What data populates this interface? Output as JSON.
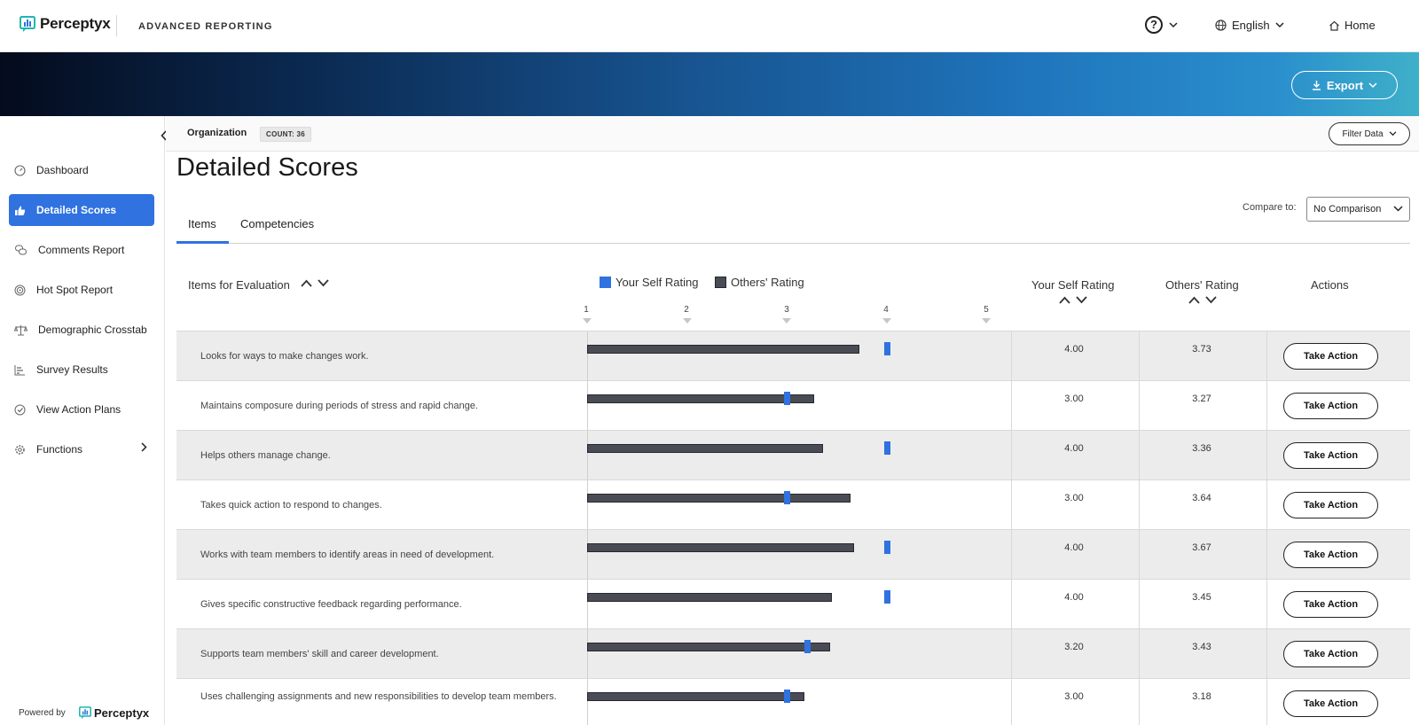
{
  "app": {
    "brand": "Perceptyx",
    "product": "ADVANCED REPORTING",
    "language": "English",
    "home": "Home",
    "help_glyph": "?"
  },
  "banner": {
    "export_label": "Export"
  },
  "sidebar": {
    "items": [
      {
        "label": "Dashboard",
        "icon": "gauge-icon",
        "active": false
      },
      {
        "label": "Detailed Scores",
        "icon": "thumbs-up-icon",
        "active": true
      },
      {
        "label": "Comments Report",
        "icon": "chat-bubbles-icon",
        "active": false
      },
      {
        "label": "Hot Spot Report",
        "icon": "target-icon",
        "active": false
      },
      {
        "label": "Demographic Crosstab",
        "icon": "balance-scale-icon",
        "active": false
      },
      {
        "label": "Survey Results",
        "icon": "bar-list-icon",
        "active": false
      },
      {
        "label": "View Action Plans",
        "icon": "check-circle-icon",
        "active": false
      },
      {
        "label": "Functions",
        "icon": "gear-icon",
        "active": false
      }
    ],
    "powered_by": "Powered by",
    "powered_brand": "Perceptyx"
  },
  "org": {
    "label": "Organization",
    "count": "COUNT: 36",
    "filter_label": "Filter Data"
  },
  "page_title": "Detailed Scores",
  "tabs": [
    {
      "label": "Items",
      "active": true
    },
    {
      "label": "Competencies",
      "active": false
    }
  ],
  "compare": {
    "label": "Compare to:",
    "value": "No Comparison"
  },
  "table": {
    "col_items": "Items for Evaluation",
    "legend_self": "Your Self Rating",
    "legend_others": "Others' Rating",
    "col_self": "Your Self Rating",
    "col_others": "Others' Rating",
    "col_actions": "Actions",
    "scale": [
      "1",
      "2",
      "3",
      "4",
      "5"
    ],
    "action_label": "Take Action",
    "rows": [
      {
        "item": "Looks for ways to make changes work.",
        "self": "4.00",
        "others": "3.73",
        "self_val": 4.0,
        "others_val": 3.73
      },
      {
        "item": "Maintains composure during periods of stress and rapid change.",
        "self": "3.00",
        "others": "3.27",
        "self_val": 3.0,
        "others_val": 3.27
      },
      {
        "item": "Helps others manage change.",
        "self": "4.00",
        "others": "3.36",
        "self_val": 4.0,
        "others_val": 3.36
      },
      {
        "item": "Takes quick action to respond to changes.",
        "self": "3.00",
        "others": "3.64",
        "self_val": 3.0,
        "others_val": 3.64
      },
      {
        "item": "Works with team members to identify areas in need of development.",
        "self": "4.00",
        "others": "3.67",
        "self_val": 4.0,
        "others_val": 3.67
      },
      {
        "item": "Gives specific constructive feedback regarding performance.",
        "self": "4.00",
        "others": "3.45",
        "self_val": 4.0,
        "others_val": 3.45
      },
      {
        "item": "Supports team members' skill and career development.",
        "self": "3.20",
        "others": "3.43",
        "self_val": 3.2,
        "others_val": 3.43
      },
      {
        "item": "Uses challenging assignments and new responsibilities to develop team members.",
        "self": "3.00",
        "others": "3.18",
        "self_val": 3.0,
        "others_val": 3.18
      }
    ]
  },
  "colors": {
    "accent": "#2f72e0",
    "others_bar": "#4a4c55",
    "row_shade": "#ececec"
  }
}
